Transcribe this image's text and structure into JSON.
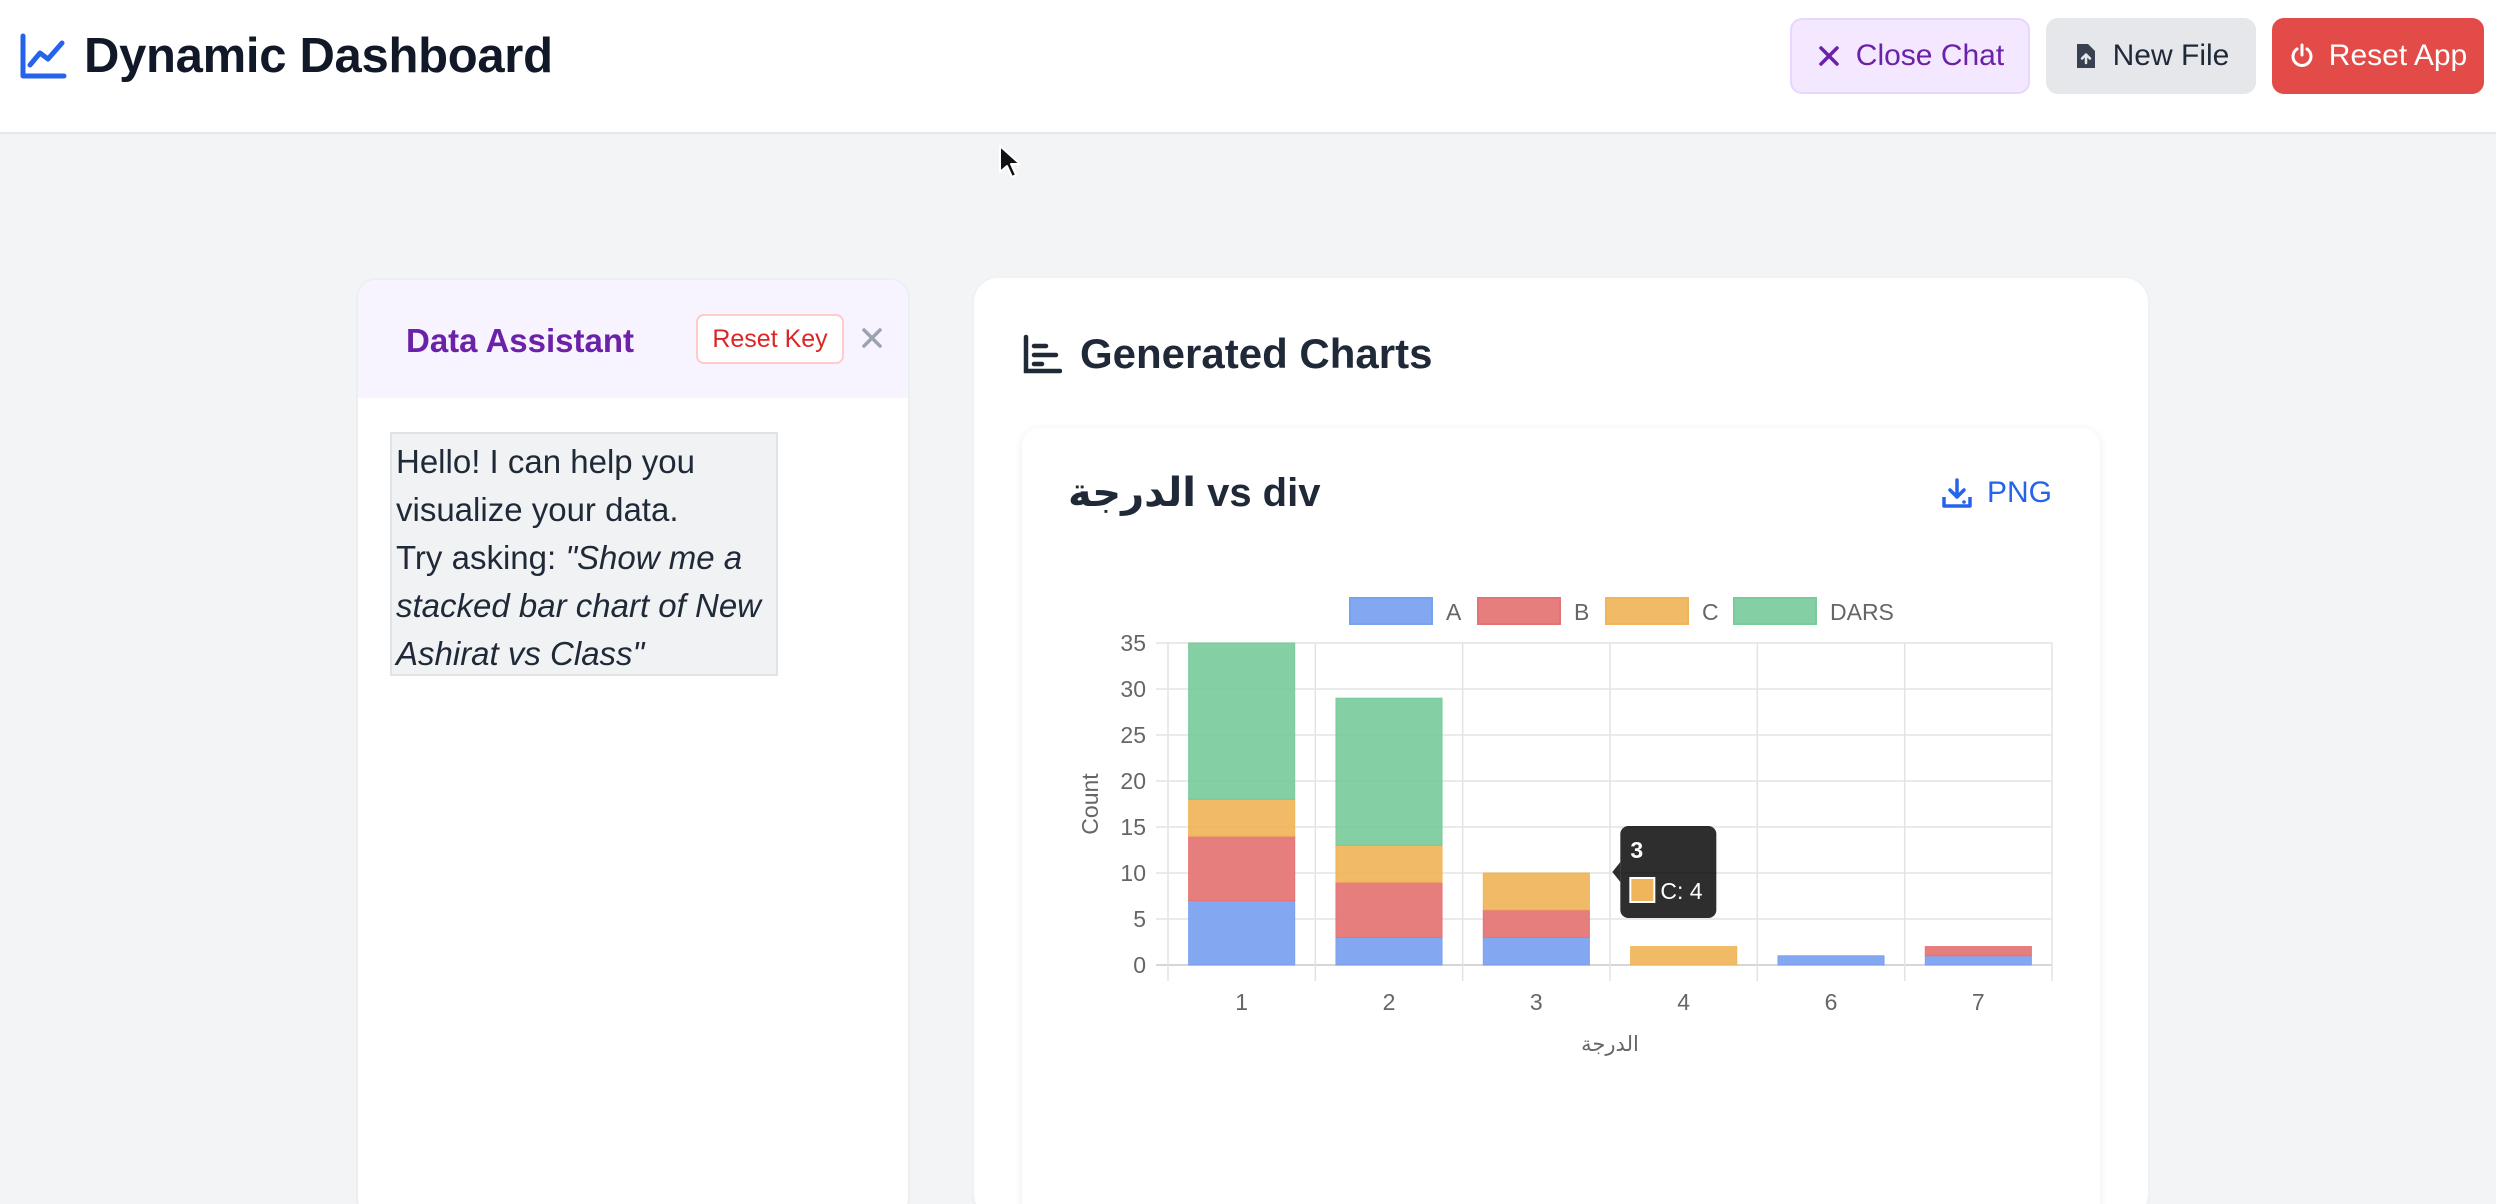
{
  "header": {
    "title": "Dynamic Dashboard",
    "close_chat_label": "Close Chat",
    "new_file_label": "New File",
    "reset_app_label": "Reset App"
  },
  "chat": {
    "title": "Data Assistant",
    "reset_key_label": "Reset Key",
    "message_line1": "Hello! I can help you visualize your data.",
    "message_prefix": "Try asking: ",
    "message_example": "\"Show me a stacked bar chart of New Ashirat vs Class\""
  },
  "charts_panel": {
    "title": "Generated Charts",
    "card_title": "الدرجة vs div",
    "png_label": "PNG"
  },
  "colors": {
    "A": "#7aa0f0",
    "B": "#e57373",
    "C": "#f0b45a",
    "DARS": "#7acb9b"
  },
  "chart_data": {
    "type": "bar",
    "stacked": true,
    "categories": [
      "1",
      "2",
      "3",
      "4",
      "6",
      "7"
    ],
    "series": [
      {
        "name": "A",
        "values": [
          7,
          3,
          3,
          0,
          1,
          1
        ]
      },
      {
        "name": "B",
        "values": [
          7,
          6,
          3,
          0,
          0,
          1
        ]
      },
      {
        "name": "C",
        "values": [
          4,
          4,
          4,
          2,
          0,
          0
        ]
      },
      {
        "name": "DARS",
        "values": [
          17,
          16,
          0,
          0,
          0,
          0
        ]
      }
    ],
    "xlabel": "الدرجة",
    "ylabel": "Count",
    "ylim": [
      0,
      35
    ],
    "yticks": [
      0,
      5,
      10,
      15,
      20,
      25,
      30,
      35
    ],
    "legend": "top",
    "grid": true,
    "tooltip": {
      "category": "3",
      "series": "C",
      "text": "C: 4"
    }
  }
}
